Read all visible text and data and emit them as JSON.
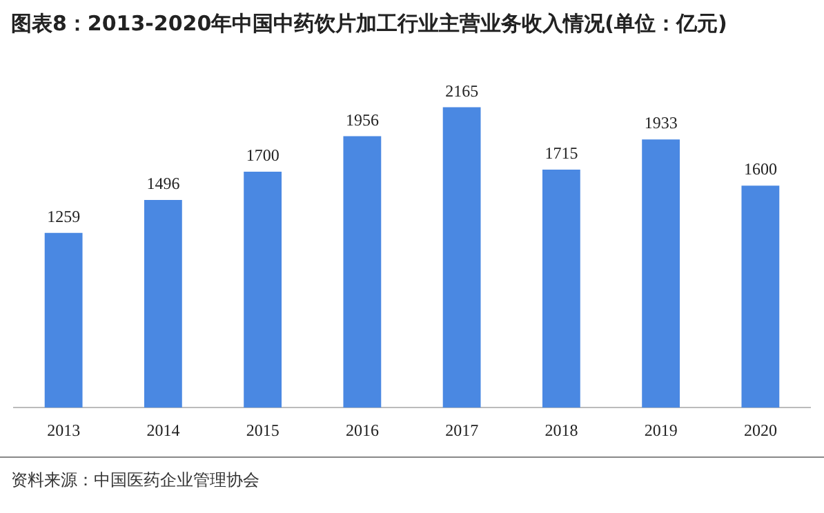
{
  "chart_data": {
    "type": "bar",
    "title": "图表8：2013-2020年中国中药饮片加工行业主营业务收入情况(单位：亿元)",
    "categories": [
      "2013",
      "2014",
      "2015",
      "2016",
      "2017",
      "2018",
      "2019",
      "2020"
    ],
    "values": [
      1259,
      1496,
      1700,
      1956,
      2165,
      1715,
      1933,
      1600
    ],
    "color": "#4a88e2",
    "data_labels": true,
    "tick_labels": "x",
    "grid": false,
    "legend": false,
    "annotations": [
      "资料来源：中国医药企业管理协会"
    ]
  }
}
